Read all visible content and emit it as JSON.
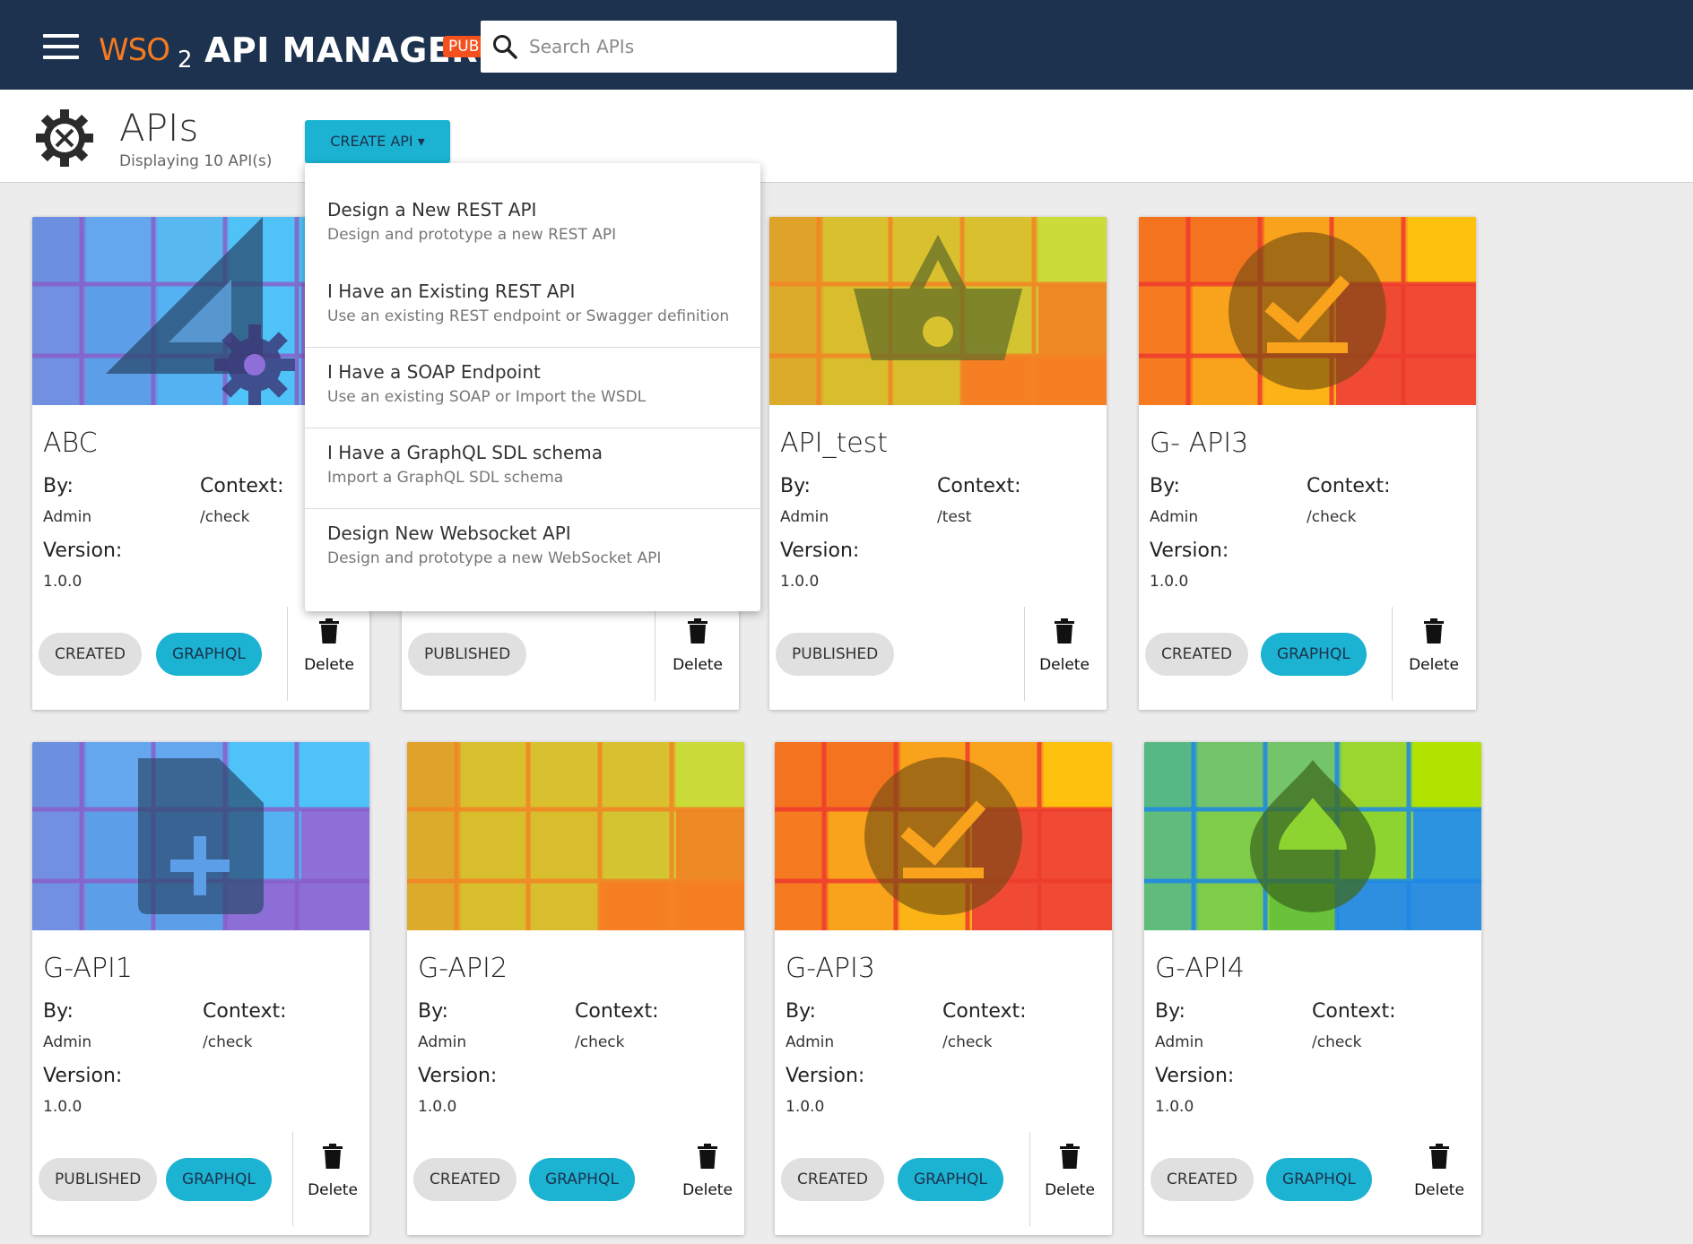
{
  "header": {
    "logo_wso": "WSO",
    "logo_two": "2",
    "app_name": "API MANAGER",
    "badge": "PUBLISHER",
    "search_placeholder": "Search APIs"
  },
  "page": {
    "title": "APIs",
    "subtitle": "Displaying 10 API(s)",
    "create_label": "CREATE API ▾"
  },
  "create_menu": [
    {
      "title": "Design a New REST API",
      "desc": "Design and prototype a new REST API"
    },
    {
      "title": "I Have an Existing REST API",
      "desc": "Use an existing REST endpoint or Swagger definition"
    },
    {
      "title": "I Have a SOAP Endpoint",
      "desc": "Use an existing SOAP or Import the WSDL"
    },
    {
      "title": "I Have a GraphQL SDL schema",
      "desc": "Import a GraphQL SDL schema"
    },
    {
      "title": "Design New Websocket API",
      "desc": "Design and prototype a new WebSocket API"
    }
  ],
  "labels": {
    "by": "By:",
    "context": "Context:",
    "version": "Version:",
    "delete": "Delete"
  },
  "apis": [
    {
      "name": "ABC",
      "by": "Admin",
      "context": "/check",
      "version": "1.0.0",
      "status": "CREATED",
      "type": "GRAPHQL",
      "theme": "blue",
      "icon": "ruler-gear-icon"
    },
    {
      "name": "",
      "by": "",
      "context": "",
      "version": "",
      "status": "PUBLISHED",
      "type": "",
      "theme": "blue",
      "icon": ""
    },
    {
      "name": "API_test",
      "by": "Admin",
      "context": "/test",
      "version": "1.0.0",
      "status": "PUBLISHED",
      "type": "",
      "theme": "yellow",
      "icon": "basket-icon"
    },
    {
      "name": "G- API3",
      "by": "Admin",
      "context": "/check",
      "version": "1.0.0",
      "status": "CREATED",
      "type": "GRAPHQL",
      "theme": "orange",
      "icon": "check-circle-icon"
    },
    {
      "name": "G-API1",
      "by": "Admin",
      "context": "/check",
      "version": "1.0.0",
      "status": "PUBLISHED",
      "type": "GRAPHQL",
      "theme": "blue",
      "icon": "file-plus-icon"
    },
    {
      "name": "G-API2",
      "by": "Admin",
      "context": "/check",
      "version": "1.0.0",
      "status": "CREATED",
      "type": "GRAPHQL",
      "theme": "yellow",
      "icon": ""
    },
    {
      "name": "G-API3",
      "by": "Admin",
      "context": "/check",
      "version": "1.0.0",
      "status": "CREATED",
      "type": "GRAPHQL",
      "theme": "orange",
      "icon": "check-circle-icon"
    },
    {
      "name": "G-API4",
      "by": "Admin",
      "context": "/check",
      "version": "1.0.0",
      "status": "CREATED",
      "type": "GRAPHQL",
      "theme": "green",
      "icon": "drop-icon"
    }
  ],
  "colors": {
    "topbar": "#1d324e",
    "accent": "#1bb3d1",
    "brand_orange": "#f47b20",
    "publisher_badge": "#f4511e"
  }
}
